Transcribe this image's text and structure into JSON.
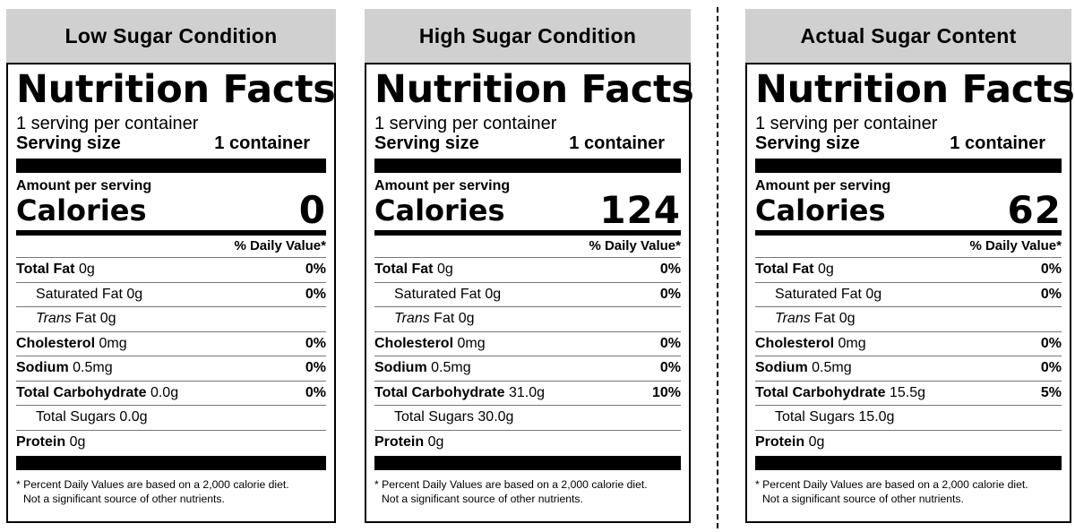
{
  "panels": [
    {
      "condition": "Low Sugar Condition",
      "title": "Nutrition Facts",
      "servings": "1 serving per container",
      "serving_size_label": "Serving size",
      "serving_size_value": "1 container",
      "amount_label": "Amount per serving",
      "calories_label": "Calories",
      "calories": "0",
      "dv_header": "% Daily Value*",
      "nutrients": [
        {
          "name": "Total Fat",
          "amount": "0g",
          "dv": "0%"
        },
        {
          "name": "Saturated Fat",
          "amount": "0g",
          "dv": "0%"
        },
        {
          "name_italic": "Trans",
          "name_rest": "Fat",
          "amount": "0g",
          "dv": ""
        },
        {
          "name": "Cholesterol",
          "amount": "0mg",
          "dv": "0%"
        },
        {
          "name": "Sodium",
          "amount": "0.5mg",
          "dv": "0%"
        },
        {
          "name": "Total Carbohydrate",
          "amount": "0.0g",
          "dv": "0%"
        },
        {
          "name": "Total Sugars",
          "amount": "0.0g",
          "dv": ""
        },
        {
          "name": "Protein",
          "amount": "0g",
          "dv": ""
        }
      ],
      "footnote_1": "* Percent Daily Values are based on a 2,000 calorie diet.",
      "footnote_2": "Not a significant source of other nutrients."
    },
    {
      "condition": "High Sugar Condition",
      "title": "Nutrition Facts",
      "servings": "1 serving per container",
      "serving_size_label": "Serving size",
      "serving_size_value": "1 container",
      "amount_label": "Amount per serving",
      "calories_label": "Calories",
      "calories": "124",
      "dv_header": "% Daily Value*",
      "nutrients": [
        {
          "name": "Total Fat",
          "amount": "0g",
          "dv": "0%"
        },
        {
          "name": "Saturated Fat",
          "amount": "0g",
          "dv": "0%"
        },
        {
          "name_italic": "Trans",
          "name_rest": "Fat",
          "amount": "0g",
          "dv": ""
        },
        {
          "name": "Cholesterol",
          "amount": "0mg",
          "dv": "0%"
        },
        {
          "name": "Sodium",
          "amount": "0.5mg",
          "dv": "0%"
        },
        {
          "name": "Total Carbohydrate",
          "amount": "31.0g",
          "dv": "10%"
        },
        {
          "name": "Total Sugars",
          "amount": "30.0g",
          "dv": ""
        },
        {
          "name": "Protein",
          "amount": "0g",
          "dv": ""
        }
      ],
      "footnote_1": "* Percent Daily Values are based on a 2,000 calorie diet.",
      "footnote_2": "Not a significant source of other nutrients."
    },
    {
      "condition": "Actual Sugar Content",
      "title": "Nutrition Facts",
      "servings": "1 serving per container",
      "serving_size_label": "Serving size",
      "serving_size_value": "1 container",
      "amount_label": "Amount per serving",
      "calories_label": "Calories",
      "calories": "62",
      "dv_header": "% Daily Value*",
      "nutrients": [
        {
          "name": "Total Fat",
          "amount": "0g",
          "dv": "0%"
        },
        {
          "name": "Saturated Fat",
          "amount": "0g",
          "dv": "0%"
        },
        {
          "name_italic": "Trans",
          "name_rest": "Fat",
          "amount": "0g",
          "dv": ""
        },
        {
          "name": "Cholesterol",
          "amount": "0mg",
          "dv": "0%"
        },
        {
          "name": "Sodium",
          "amount": "0.5mg",
          "dv": "0%"
        },
        {
          "name": "Total Carbohydrate",
          "amount": "15.5g",
          "dv": "5%"
        },
        {
          "name": "Total Sugars",
          "amount": "15.0g",
          "dv": ""
        },
        {
          "name": "Protein",
          "amount": "0g",
          "dv": ""
        }
      ],
      "footnote_1": "* Percent Daily Values are based on a 2,000 calorie diet.",
      "footnote_2": "Not a significant source of other nutrients."
    }
  ]
}
